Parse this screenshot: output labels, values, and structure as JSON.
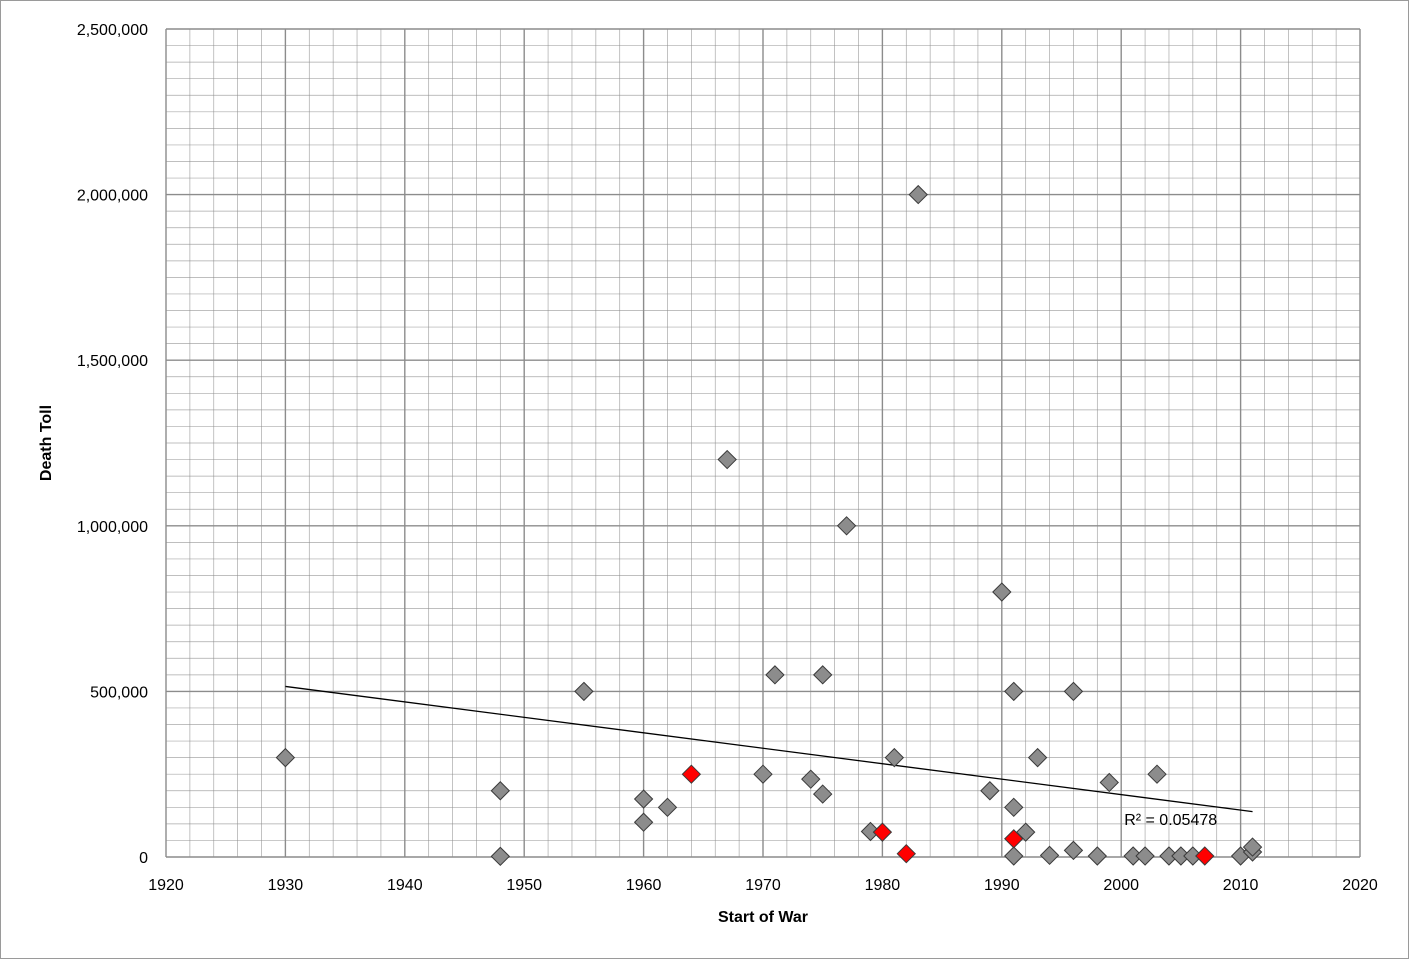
{
  "chart_data": {
    "type": "scatter",
    "title": "",
    "xlabel": "Start of War",
    "ylabel": "Death Toll",
    "xlim": [
      1920,
      2020
    ],
    "ylim": [
      0,
      2500000
    ],
    "x_ticks": [
      1920,
      1930,
      1940,
      1950,
      1960,
      1970,
      1980,
      1990,
      2000,
      2010,
      2020
    ],
    "y_ticks": [
      0,
      500000,
      1000000,
      1500000,
      2000000,
      2500000
    ],
    "x_tick_labels": [
      "1920",
      "1930",
      "1940",
      "1950",
      "1960",
      "1970",
      "1980",
      "1990",
      "2000",
      "2010",
      "2020"
    ],
    "y_tick_labels": [
      "0",
      "500,000",
      "1,000,000",
      "1,500,000",
      "2,000,000",
      "2,500,000"
    ],
    "grid": true,
    "marker": "diamond",
    "colors": {
      "default_point": "#8c8c8c",
      "highlight_point": "#ff0000",
      "trendline": "#000000",
      "gridline": "#8c8c8c"
    },
    "series": [
      {
        "color": "#8c8c8c",
        "points": [
          {
            "x": 1930,
            "y": 300000
          },
          {
            "x": 1948,
            "y": 200000
          },
          {
            "x": 1948,
            "y": 2000
          },
          {
            "x": 1955,
            "y": 500000
          },
          {
            "x": 1960,
            "y": 175000
          },
          {
            "x": 1960,
            "y": 105000
          },
          {
            "x": 1962,
            "y": 150000
          },
          {
            "x": 1967,
            "y": 1200000
          },
          {
            "x": 1970,
            "y": 250000
          },
          {
            "x": 1971,
            "y": 550000
          },
          {
            "x": 1974,
            "y": 235000
          },
          {
            "x": 1975,
            "y": 550000
          },
          {
            "x": 1975,
            "y": 190000
          },
          {
            "x": 1977,
            "y": 1000000
          },
          {
            "x": 1979,
            "y": 77000
          },
          {
            "x": 1981,
            "y": 300000
          },
          {
            "x": 1983,
            "y": 2000000
          },
          {
            "x": 1989,
            "y": 200000
          },
          {
            "x": 1990,
            "y": 800000
          },
          {
            "x": 1991,
            "y": 500000
          },
          {
            "x": 1991,
            "y": 150000
          },
          {
            "x": 1991,
            "y": 3000
          },
          {
            "x": 1992,
            "y": 75000
          },
          {
            "x": 1993,
            "y": 300000
          },
          {
            "x": 1994,
            "y": 5000
          },
          {
            "x": 1996,
            "y": 500000
          },
          {
            "x": 1996,
            "y": 20000
          },
          {
            "x": 1998,
            "y": 3000
          },
          {
            "x": 1999,
            "y": 225000
          },
          {
            "x": 2001,
            "y": 3000
          },
          {
            "x": 2002,
            "y": 3000
          },
          {
            "x": 2003,
            "y": 250000
          },
          {
            "x": 2004,
            "y": 3000
          },
          {
            "x": 2005,
            "y": 3000
          },
          {
            "x": 2006,
            "y": 3000
          },
          {
            "x": 2010,
            "y": 3000
          },
          {
            "x": 2011,
            "y": 15000
          },
          {
            "x": 2011,
            "y": 30000
          }
        ]
      },
      {
        "color": "#ff0000",
        "points": [
          {
            "x": 1964,
            "y": 250000
          },
          {
            "x": 1980,
            "y": 75000
          },
          {
            "x": 1982,
            "y": 10000
          },
          {
            "x": 1991,
            "y": 55000
          },
          {
            "x": 2007,
            "y": 3000
          }
        ]
      }
    ],
    "trendline": {
      "type": "linear",
      "x_start": 1930,
      "y_start": 515000,
      "x_end": 2011,
      "y_end": 137000
    },
    "annotations": [
      {
        "text": "R² = 0.05478",
        "x": 2000,
        "y": 115000
      }
    ]
  }
}
